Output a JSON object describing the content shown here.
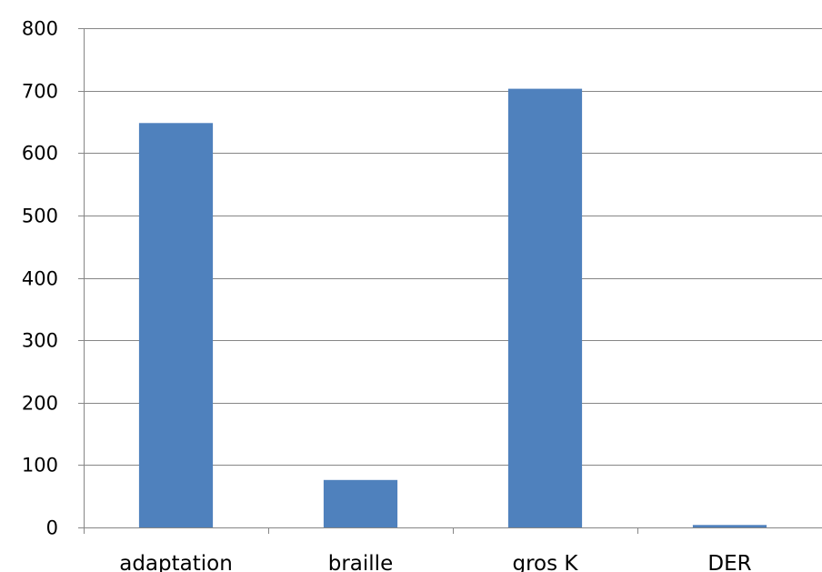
{
  "chart_data": {
    "type": "bar",
    "title": "",
    "xlabel": "",
    "ylabel": "",
    "categories": [
      "adaptation",
      "braille",
      "gros K",
      "DER"
    ],
    "values": [
      648,
      76,
      703,
      4
    ],
    "ylim": [
      0,
      800
    ],
    "yticks": [
      0,
      100,
      200,
      300,
      400,
      500,
      600,
      700,
      800
    ],
    "grid": true,
    "legend": "none",
    "bar_color": "#4F81BD"
  }
}
